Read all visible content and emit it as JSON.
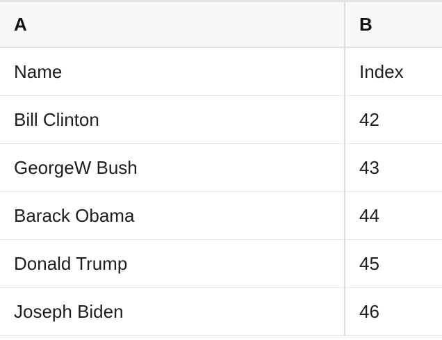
{
  "table": {
    "column_headers": [
      "A",
      "B"
    ],
    "rows": [
      [
        "Name",
        "Index"
      ],
      [
        "Bill Clinton",
        "42"
      ],
      [
        "GeorgeW Bush",
        "43"
      ],
      [
        "Barack Obama",
        "44"
      ],
      [
        "Donald Trump",
        "45"
      ],
      [
        "Joseph Biden",
        "46"
      ]
    ]
  },
  "colors": {
    "header_bg": "#f8f8f8",
    "top_border": "#e2e2e2",
    "column_divider": "#dcdcdc",
    "row_border": "#e7e7e7",
    "header_border": "#e0e0e0",
    "header_text": "#111111",
    "cell_text": "#1e1e1e",
    "background": "#ffffff"
  }
}
